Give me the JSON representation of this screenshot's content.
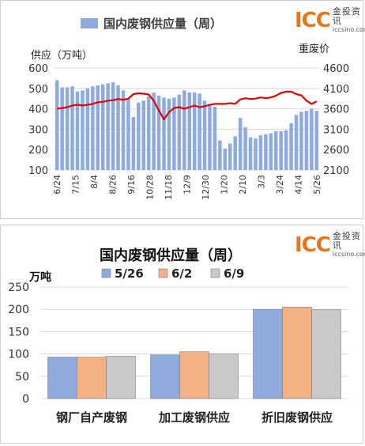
{
  "logo": {
    "mark": "ICC",
    "cn": "金投资讯",
    "url": "iccsino.com"
  },
  "chart_data": [
    {
      "type": "bar",
      "title": "国内废钢供应量（周）",
      "ylabel": "供应（万吨）",
      "y2label": "重废价",
      "ylim": [
        100,
        600
      ],
      "y2lim": [
        2100,
        4600
      ],
      "yticks": [
        100,
        200,
        300,
        400,
        500,
        600
      ],
      "y2ticks": [
        2100,
        2600,
        3100,
        3600,
        4100,
        4600
      ],
      "xtick_labels": [
        "6/24",
        "7/15",
        "8/4",
        "8/26",
        "9/16",
        "10/28",
        "11/18",
        "12/9",
        "12/30",
        "1/20",
        "2/10",
        "3/3",
        "3/24",
        "4/14",
        "5/26"
      ],
      "grid": true,
      "legend": "top",
      "bar_color": "#8faadc",
      "line_color": "#e00000",
      "series": [
        {
          "name": "国内废钢供应量（周）",
          "kind": "bar",
          "values": [
            540,
            505,
            505,
            510,
            485,
            490,
            500,
            510,
            515,
            520,
            525,
            530,
            515,
            490,
            450,
            360,
            430,
            440,
            460,
            480,
            465,
            455,
            450,
            455,
            470,
            490,
            480,
            480,
            475,
            440,
            420,
            410,
            245,
            205,
            230,
            265,
            355,
            310,
            260,
            255,
            270,
            275,
            280,
            290,
            290,
            295,
            330,
            370,
            385,
            390,
            400,
            390
          ]
        },
        {
          "kind": "line",
          "values": [
            3600,
            3620,
            3640,
            3680,
            3700,
            3680,
            3700,
            3720,
            3760,
            3770,
            3800,
            3810,
            3840,
            3820,
            3850,
            3960,
            3980,
            3970,
            3950,
            3800,
            3560,
            3340,
            3520,
            3620,
            3640,
            3600,
            3640,
            3680,
            3640,
            3660,
            3700,
            3720,
            3720,
            3720,
            3740,
            3720,
            3830,
            3860,
            3840,
            3850,
            3880,
            3860,
            3880,
            3920,
            3990,
            4020,
            4020,
            3960,
            3930,
            3800,
            3720,
            3780
          ]
        }
      ]
    },
    {
      "type": "bar",
      "title": "国内废钢供应量（周）",
      "ylabel": "万吨",
      "ylim": [
        0,
        250
      ],
      "yticks": [
        0,
        50,
        100,
        150,
        200,
        250
      ],
      "categories": [
        "钢厂自产废钢",
        "加工废钢供应",
        "折旧废钢供应"
      ],
      "grid": true,
      "legend": "top",
      "series": [
        {
          "name": "5/26",
          "color": "#8faadc",
          "values": [
            93,
            98,
            200
          ]
        },
        {
          "name": "6/2",
          "color": "#f4b183",
          "values": [
            93,
            105,
            205
          ]
        },
        {
          "name": "6/9",
          "color": "#c9c9c9",
          "values": [
            95,
            100,
            199
          ]
        }
      ]
    }
  ]
}
